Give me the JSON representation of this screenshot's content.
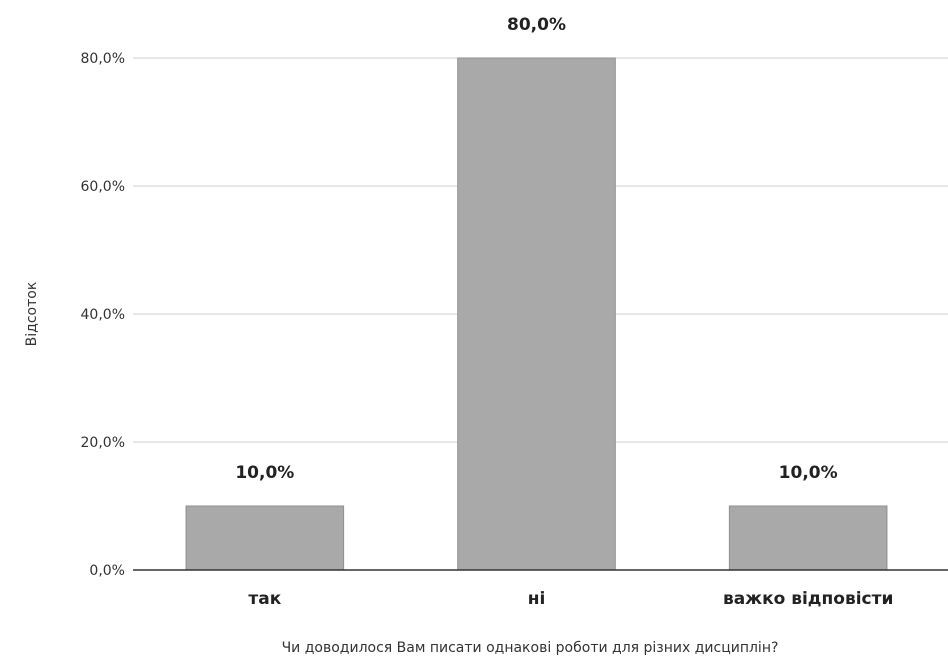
{
  "chart_data": {
    "type": "bar",
    "title": "",
    "xlabel": "Чи доводилося Вам писати однакові роботи для різних дисциплін?",
    "ylabel": "Відсоток",
    "categories": [
      "так",
      "ні",
      "важко відповісти"
    ],
    "values": [
      10,
      80,
      10
    ],
    "data_labels": [
      "10,0%",
      "80,0%",
      "10,0%"
    ],
    "ylim": [
      0,
      80
    ],
    "yticks": [
      0,
      20,
      40,
      60,
      80
    ],
    "ytick_labels": [
      "0,0%",
      "20,0%",
      "40,0%",
      "60,0%",
      "80,0%"
    ],
    "grid": true,
    "legend": "none",
    "bar_color": "#a9a9a9"
  }
}
